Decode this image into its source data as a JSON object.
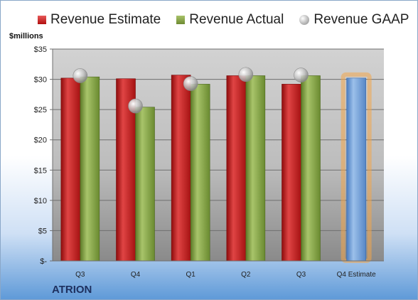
{
  "legend": {
    "estimate": "Revenue Estimate",
    "actual": "Revenue Actual",
    "gaap": "Revenue GAAP"
  },
  "unit_label": "$millions",
  "company": "ATRION",
  "colors": {
    "estimate": "#c8191a",
    "actual": "#86a53d",
    "gaap": "#bdbdbd",
    "q4_estimate": "#6a9bd6",
    "q4_glow": "#f2a64a"
  },
  "chart_data": {
    "type": "bar",
    "categories": [
      "Q3",
      "Q4",
      "Q1",
      "Q2",
      "Q3",
      "Q4 Estimate"
    ],
    "ylabel": "$millions",
    "ylim": [
      0,
      35
    ],
    "ytick_values": [
      0,
      5,
      10,
      15,
      20,
      25,
      30,
      35
    ],
    "ytick_labels": [
      "$-",
      "$5",
      "$10",
      "$15",
      "$20",
      "$25",
      "$30",
      "$35"
    ],
    "grid": true,
    "series": [
      {
        "name": "Revenue Estimate",
        "values": [
          30.2,
          30.1,
          30.7,
          30.6,
          29.2,
          30.2
        ]
      },
      {
        "name": "Revenue Actual",
        "values": [
          30.4,
          25.4,
          29.2,
          30.6,
          30.6,
          null
        ]
      },
      {
        "name": "Revenue GAAP",
        "values": [
          30.6,
          25.6,
          29.3,
          30.8,
          30.7,
          null
        ]
      }
    ]
  }
}
